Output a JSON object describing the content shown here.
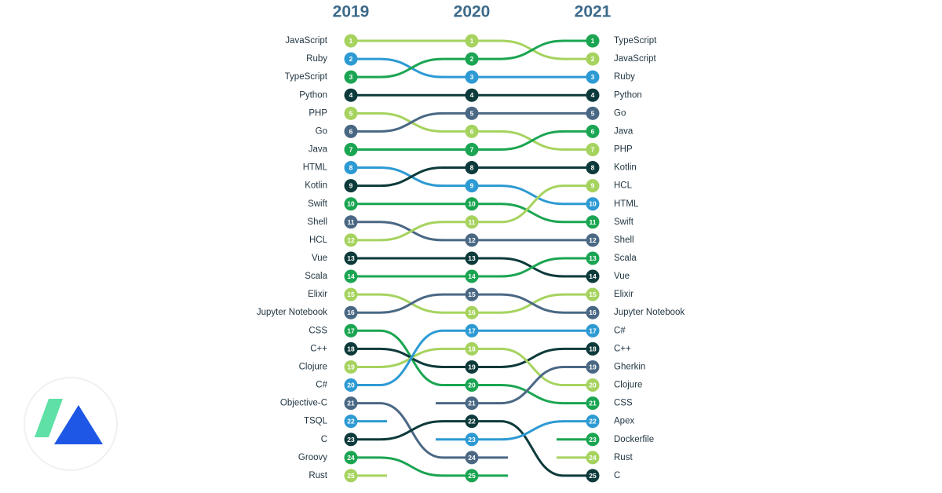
{
  "chart_data": {
    "type": "bump",
    "categories": [
      "2019",
      "2020",
      "2021"
    ],
    "series": [
      {
        "name": "JavaScript",
        "color": "#a6d35f",
        "values": [
          1,
          1,
          2
        ]
      },
      {
        "name": "Ruby",
        "color": "#2d9ad3",
        "values": [
          2,
          3,
          3
        ]
      },
      {
        "name": "TypeScript",
        "color": "#1ba552",
        "values": [
          3,
          2,
          1
        ]
      },
      {
        "name": "Python",
        "color": "#0d3a3b",
        "values": [
          4,
          4,
          4
        ]
      },
      {
        "name": "PHP",
        "color": "#a6d35f",
        "values": [
          5,
          6,
          7
        ]
      },
      {
        "name": "Go",
        "color": "#4a6884",
        "values": [
          6,
          5,
          5
        ]
      },
      {
        "name": "Java",
        "color": "#1ba552",
        "values": [
          7,
          7,
          6
        ]
      },
      {
        "name": "HTML",
        "color": "#2d9ad3",
        "values": [
          8,
          9,
          10
        ]
      },
      {
        "name": "Kotlin",
        "color": "#0d3a3b",
        "values": [
          9,
          8,
          8
        ]
      },
      {
        "name": "Swift",
        "color": "#1ba552",
        "values": [
          10,
          10,
          11
        ]
      },
      {
        "name": "Shell",
        "color": "#4a6884",
        "values": [
          11,
          12,
          12
        ]
      },
      {
        "name": "HCL",
        "color": "#a6d35f",
        "values": [
          12,
          11,
          9
        ]
      },
      {
        "name": "Vue",
        "color": "#0d3a3b",
        "values": [
          13,
          13,
          14
        ]
      },
      {
        "name": "Scala",
        "color": "#1ba552",
        "values": [
          14,
          14,
          13
        ]
      },
      {
        "name": "Elixir",
        "color": "#a6d35f",
        "values": [
          15,
          16,
          15
        ]
      },
      {
        "name": "Jupyter Notebook",
        "color": "#4a6884",
        "values": [
          16,
          15,
          16
        ]
      },
      {
        "name": "CSS",
        "color": "#1ba552",
        "values": [
          17,
          20,
          21
        ]
      },
      {
        "name": "C++",
        "color": "#0d3a3b",
        "values": [
          18,
          19,
          18
        ]
      },
      {
        "name": "Clojure",
        "color": "#a6d35f",
        "values": [
          19,
          18,
          20
        ]
      },
      {
        "name": "C#",
        "color": "#2d9ad3",
        "values": [
          20,
          17,
          17
        ]
      },
      {
        "name": "Objective-C",
        "color": "#4a6884",
        "values": [
          21,
          24,
          null
        ]
      },
      {
        "name": "TSQL",
        "color": "#2d9ad3",
        "values": [
          22,
          null,
          null
        ]
      },
      {
        "name": "C",
        "color": "#0d3a3b",
        "values": [
          23,
          22,
          25
        ]
      },
      {
        "name": "Groovy",
        "color": "#1ba552",
        "values": [
          24,
          25,
          null
        ]
      },
      {
        "name": "Rust",
        "color": "#a6d35f",
        "values": [
          25,
          null,
          24
        ]
      },
      {
        "name": "Gherkin",
        "color": "#4a6884",
        "values": [
          null,
          21,
          19
        ]
      },
      {
        "name": "Apex",
        "color": "#2d9ad3",
        "values": [
          null,
          23,
          22
        ]
      },
      {
        "name": "Dockerfile",
        "color": "#1ba552",
        "values": [
          null,
          null,
          23
        ]
      }
    ]
  }
}
